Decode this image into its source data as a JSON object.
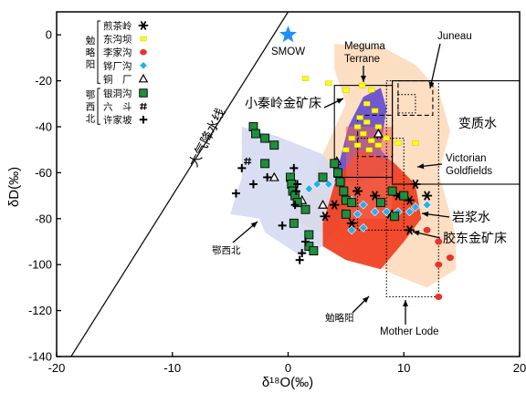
{
  "chart_data": {
    "type": "scatter",
    "xlabel": "δ¹⁸O(‰)",
    "ylabel": "δD(‰)",
    "xlim": [
      -20,
      20
    ],
    "ylim": [
      -140,
      10
    ],
    "xticks": [
      "-20",
      "-10",
      "0",
      "10",
      "20"
    ],
    "yticks": [
      "0",
      "-20",
      "-40",
      "-60",
      "-80",
      "-100",
      "-120",
      "-140"
    ],
    "legend": {
      "placement": "top-left",
      "groups": [
        {
          "name": "勉略阳",
          "entries": [
            {
              "label": "煎茶岭",
              "symbol": "star",
              "color": "#000000"
            },
            {
              "label": "东沟坝",
              "symbol": "square",
              "color": "#ffff00"
            },
            {
              "label": "李家沟",
              "symbol": "circle",
              "color": "#e8322a"
            },
            {
              "label": "铧厂沟",
              "symbol": "diamond",
              "color": "#22b0f0"
            },
            {
              "label": "铜　厂",
              "symbol": "triangle",
              "color": "#ffffff"
            }
          ]
        },
        {
          "name": "鄂西北",
          "entries": [
            {
              "label": "银洞沟",
              "symbol": "square-green",
              "color": "#1e8f3c"
            },
            {
              "label": "六　斗",
              "symbol": "hash",
              "color": "#000000"
            },
            {
              "label": "许家坡",
              "symbol": "plus",
              "color": "#000000"
            }
          ]
        }
      ]
    },
    "reference_line": {
      "label": "大气降水线",
      "slope": 8,
      "intercept": 10
    },
    "smow": {
      "label": "SMOW",
      "x": 0,
      "y": 0,
      "color": "#1e90ff"
    },
    "fields": [
      {
        "label": "勉略阳",
        "color": "#fbd8b8",
        "points": [
          [
            4,
            -4
          ],
          [
            8,
            -5
          ],
          [
            11,
            -13
          ],
          [
            13,
            -24
          ],
          [
            14,
            -42
          ],
          [
            13,
            -60
          ],
          [
            14,
            -78
          ],
          [
            14.5,
            -88
          ],
          [
            14.5,
            -102
          ],
          [
            12,
            -110
          ],
          [
            9,
            -104
          ],
          [
            6,
            -95
          ],
          [
            3,
            -86
          ],
          [
            0,
            -80
          ],
          [
            2,
            -68
          ],
          [
            3,
            -52
          ],
          [
            5,
            -30
          ],
          [
            4,
            -15
          ]
        ]
      },
      {
        "label": "鄂西北",
        "color": "#d4d8f0",
        "points": [
          [
            -4,
            -40
          ],
          [
            -1,
            -44
          ],
          [
            3,
            -52
          ],
          [
            5,
            -65
          ],
          [
            4.5,
            -82
          ],
          [
            3,
            -92
          ],
          [
            1,
            -96
          ],
          [
            -2,
            -86
          ],
          [
            -2.5,
            -80
          ],
          [
            -5,
            -78
          ],
          [
            -4,
            -62
          ],
          [
            -4,
            -50
          ]
        ]
      },
      {
        "label": "小秦岭金矿床",
        "color": "#6a4fd1",
        "points": [
          [
            4,
            -64
          ],
          [
            5.2,
            -40
          ],
          [
            6.5,
            -27
          ],
          [
            8,
            -23
          ],
          [
            8.5,
            -32
          ],
          [
            8,
            -50
          ],
          [
            9,
            -56
          ],
          [
            8,
            -62
          ],
          [
            6,
            -64
          ]
        ]
      },
      {
        "label": "胶东金矿床",
        "color": "#f03d1f",
        "points": [
          [
            6,
            -50
          ],
          [
            9,
            -55
          ],
          [
            11,
            -65
          ],
          [
            11.5,
            -80
          ],
          [
            10,
            -90
          ],
          [
            8,
            -102
          ],
          [
            5,
            -98
          ],
          [
            3,
            -92
          ],
          [
            3,
            -82
          ],
          [
            4,
            -65
          ]
        ]
      },
      {
        "label": "岩浆水",
        "color": "#ee6655",
        "points": [
          [
            5,
            -40
          ],
          [
            9,
            -40
          ],
          [
            9,
            -80
          ],
          [
            5,
            -80
          ]
        ]
      }
    ],
    "boxes": [
      {
        "label": "Meguma Terrane",
        "style": "solid",
        "x": [
          4,
          9
        ],
        "y": [
          -62,
          -22
        ]
      },
      {
        "label": "Juneau",
        "style": "dashed",
        "x": [
          9.5,
          12.5
        ],
        "y": [
          -35,
          -20
        ]
      },
      {
        "label": "变质水",
        "style": "solid",
        "x": [
          9,
          20
        ],
        "y": [
          -65,
          -20
        ]
      },
      {
        "label": "Victorian Goldfields",
        "style": "dotted",
        "x": [
          6,
          10
        ],
        "y": [
          -85,
          -45
        ]
      },
      {
        "label": "Mother Lode",
        "style": "dotted",
        "x": [
          8.5,
          13
        ],
        "y": [
          -114,
          -20
        ]
      },
      {
        "label": "inner",
        "style": "dotted",
        "x": [
          9.5,
          11
        ],
        "y": [
          -34,
          -26
        ]
      },
      {
        "label": "dashed-inner",
        "style": "dashed",
        "x": [
          6,
          9
        ],
        "y": [
          -53,
          -35
        ]
      }
    ],
    "series": [
      {
        "name": "煎茶岭",
        "symbol": "star",
        "color": "#000000",
        "points": [
          [
            3.2,
            -79
          ],
          [
            4,
            -74
          ],
          [
            5.5,
            -82
          ],
          [
            7.5,
            -70
          ],
          [
            8.8,
            -78
          ],
          [
            10.5,
            -72
          ],
          [
            11,
            -65
          ],
          [
            12,
            -70
          ],
          [
            9.5,
            -70
          ],
          [
            6,
            -68
          ],
          [
            10.5,
            -85
          ]
        ]
      },
      {
        "name": "东沟坝",
        "symbol": "square",
        "color": "#ffff00",
        "points": [
          [
            1.5,
            -19
          ],
          [
            3.5,
            -21
          ],
          [
            5,
            -24
          ],
          [
            6.4,
            -22
          ],
          [
            7.2,
            -24
          ],
          [
            6.8,
            -30
          ],
          [
            7.5,
            -33
          ],
          [
            6.2,
            -36
          ],
          [
            6.8,
            -38
          ],
          [
            7.8,
            -40
          ],
          [
            6,
            -40
          ],
          [
            6.5,
            -43
          ],
          [
            7.2,
            -46
          ],
          [
            7.8,
            -48
          ],
          [
            9.5,
            -47
          ],
          [
            11,
            -47
          ],
          [
            8.5,
            -45
          ],
          [
            5.5,
            -45
          ],
          [
            6,
            -48
          ],
          [
            7,
            -50
          ],
          [
            5,
            -50
          ]
        ]
      },
      {
        "name": "李家沟",
        "symbol": "circle",
        "color": "#e8322a",
        "points": [
          [
            12,
            -85
          ],
          [
            13,
            -90
          ],
          [
            13,
            -100
          ],
          [
            14,
            -97
          ],
          [
            13,
            -114
          ]
        ]
      },
      {
        "name": "铧厂沟",
        "symbol": "diamond",
        "color": "#22b0f0",
        "points": [
          [
            1.8,
            -67
          ],
          [
            2.5,
            -65
          ],
          [
            3.5,
            -65
          ],
          [
            5.5,
            -72
          ],
          [
            6.5,
            -74
          ],
          [
            7.5,
            -77
          ],
          [
            8.5,
            -77
          ],
          [
            9.5,
            -77
          ],
          [
            10.5,
            -77
          ],
          [
            11,
            -75
          ],
          [
            12,
            -74
          ],
          [
            6,
            -78
          ],
          [
            6.5,
            -84
          ],
          [
            5.5,
            -85
          ]
        ]
      },
      {
        "name": "铜　厂",
        "symbol": "triangle",
        "color": "#ffffff",
        "points": [
          [
            -1.2,
            -62
          ],
          [
            1.2,
            -72
          ],
          [
            4.2,
            -55
          ],
          [
            7.8,
            -43
          ],
          [
            3,
            -74
          ]
        ]
      },
      {
        "name": "银洞沟",
        "symbol": "square-green",
        "color": "#1e8f3c",
        "points": [
          [
            -3,
            -40
          ],
          [
            -2.8,
            -43
          ],
          [
            -2,
            -45
          ],
          [
            -1.2,
            -48
          ],
          [
            -2,
            -56
          ],
          [
            0.2,
            -62
          ],
          [
            0.3,
            -65
          ],
          [
            0.4,
            -68
          ],
          [
            0.6,
            -70
          ],
          [
            0.8,
            -73
          ],
          [
            1.5,
            -76
          ],
          [
            0.5,
            -82
          ],
          [
            1.8,
            -87
          ],
          [
            1.8,
            -92
          ],
          [
            2.2,
            -94
          ],
          [
            3,
            -62
          ],
          [
            4,
            -56
          ],
          [
            4.3,
            -60
          ],
          [
            4.5,
            -64
          ],
          [
            4.8,
            -68
          ],
          [
            5,
            -72
          ],
          [
            5.5,
            -73
          ],
          [
            5,
            -78
          ],
          [
            8,
            -73
          ],
          [
            9,
            -68
          ],
          [
            10,
            -70
          ],
          [
            9.2,
            -79
          ]
        ]
      },
      {
        "name": "六　斗",
        "symbol": "hash",
        "color": "#000000",
        "points": [
          [
            -3.5,
            -55
          ]
        ]
      },
      {
        "name": "许家坡",
        "symbol": "plus",
        "color": "#000000",
        "points": [
          [
            -4,
            -58
          ],
          [
            -1.8,
            -62
          ],
          [
            -3,
            -65
          ],
          [
            -4.5,
            -69
          ],
          [
            0.5,
            -58
          ],
          [
            0.8,
            -65
          ],
          [
            0.7,
            -68
          ],
          [
            0.6,
            -74
          ],
          [
            -0.5,
            -83
          ],
          [
            1.5,
            -90
          ],
          [
            1.2,
            -95
          ],
          [
            1,
            -98
          ]
        ]
      }
    ],
    "annotations": [
      {
        "label": "SMOW"
      },
      {
        "label": "小秦岭金矿床"
      },
      {
        "label": "Meguma"
      },
      {
        "label": "Terrane"
      },
      {
        "label": "Juneau"
      },
      {
        "label": "变质水"
      },
      {
        "label": "Victorian"
      },
      {
        "label": "Goldfields"
      },
      {
        "label": "岩浆水"
      },
      {
        "label": "胶东金矿床"
      },
      {
        "label": "鄂西北"
      },
      {
        "label": "勉略阳"
      },
      {
        "label": "Mother Lode"
      }
    ]
  }
}
